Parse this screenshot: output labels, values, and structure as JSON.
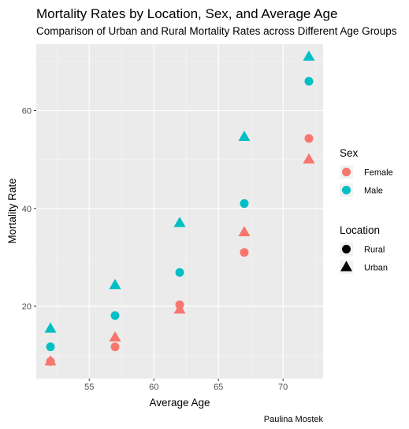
{
  "chart_data": {
    "type": "scatter",
    "title": "Mortality Rates by Location, Sex, and Average Age",
    "subtitle": "Comparison of Urban and Rural Mortality Rates across Different Age Groups",
    "xlabel": "Average Age",
    "ylabel": "Mortality Rate",
    "caption": "Paulina Mostek",
    "xlim": [
      50.9,
      73.1
    ],
    "ylim": [
      5.2,
      73.6
    ],
    "x_ticks": [
      55,
      60,
      65,
      70
    ],
    "y_ticks": [
      20,
      40,
      60
    ],
    "grid": true,
    "legend_position": "right",
    "legends": [
      {
        "title": "Sex",
        "entries": [
          {
            "label": "Female",
            "color": "#F8766D"
          },
          {
            "label": "Male",
            "color": "#00BFC4"
          }
        ]
      },
      {
        "title": "Location",
        "entries": [
          {
            "label": "Rural",
            "shape": "circle"
          },
          {
            "label": "Urban",
            "shape": "triangle"
          }
        ]
      }
    ],
    "points": [
      {
        "x": 52,
        "y": 8.7,
        "sex": "Female",
        "location": "Rural"
      },
      {
        "x": 52,
        "y": 8.7,
        "sex": "Female",
        "location": "Urban"
      },
      {
        "x": 52,
        "y": 11.7,
        "sex": "Male",
        "location": "Rural"
      },
      {
        "x": 52,
        "y": 15.4,
        "sex": "Male",
        "location": "Urban"
      },
      {
        "x": 57,
        "y": 11.7,
        "sex": "Female",
        "location": "Rural"
      },
      {
        "x": 57,
        "y": 13.6,
        "sex": "Female",
        "location": "Urban"
      },
      {
        "x": 57,
        "y": 18.1,
        "sex": "Male",
        "location": "Rural"
      },
      {
        "x": 57,
        "y": 24.3,
        "sex": "Male",
        "location": "Urban"
      },
      {
        "x": 62,
        "y": 20.3,
        "sex": "Female",
        "location": "Rural"
      },
      {
        "x": 62,
        "y": 19.3,
        "sex": "Female",
        "location": "Urban"
      },
      {
        "x": 62,
        "y": 26.9,
        "sex": "Male",
        "location": "Rural"
      },
      {
        "x": 62,
        "y": 37.0,
        "sex": "Male",
        "location": "Urban"
      },
      {
        "x": 67,
        "y": 31.0,
        "sex": "Female",
        "location": "Rural"
      },
      {
        "x": 67,
        "y": 35.1,
        "sex": "Female",
        "location": "Urban"
      },
      {
        "x": 67,
        "y": 41.0,
        "sex": "Male",
        "location": "Rural"
      },
      {
        "x": 67,
        "y": 54.6,
        "sex": "Male",
        "location": "Urban"
      },
      {
        "x": 72,
        "y": 54.3,
        "sex": "Female",
        "location": "Rural"
      },
      {
        "x": 72,
        "y": 50.0,
        "sex": "Female",
        "location": "Urban"
      },
      {
        "x": 72,
        "y": 66.0,
        "sex": "Male",
        "location": "Rural"
      },
      {
        "x": 72,
        "y": 71.0,
        "sex": "Male",
        "location": "Urban"
      }
    ]
  }
}
